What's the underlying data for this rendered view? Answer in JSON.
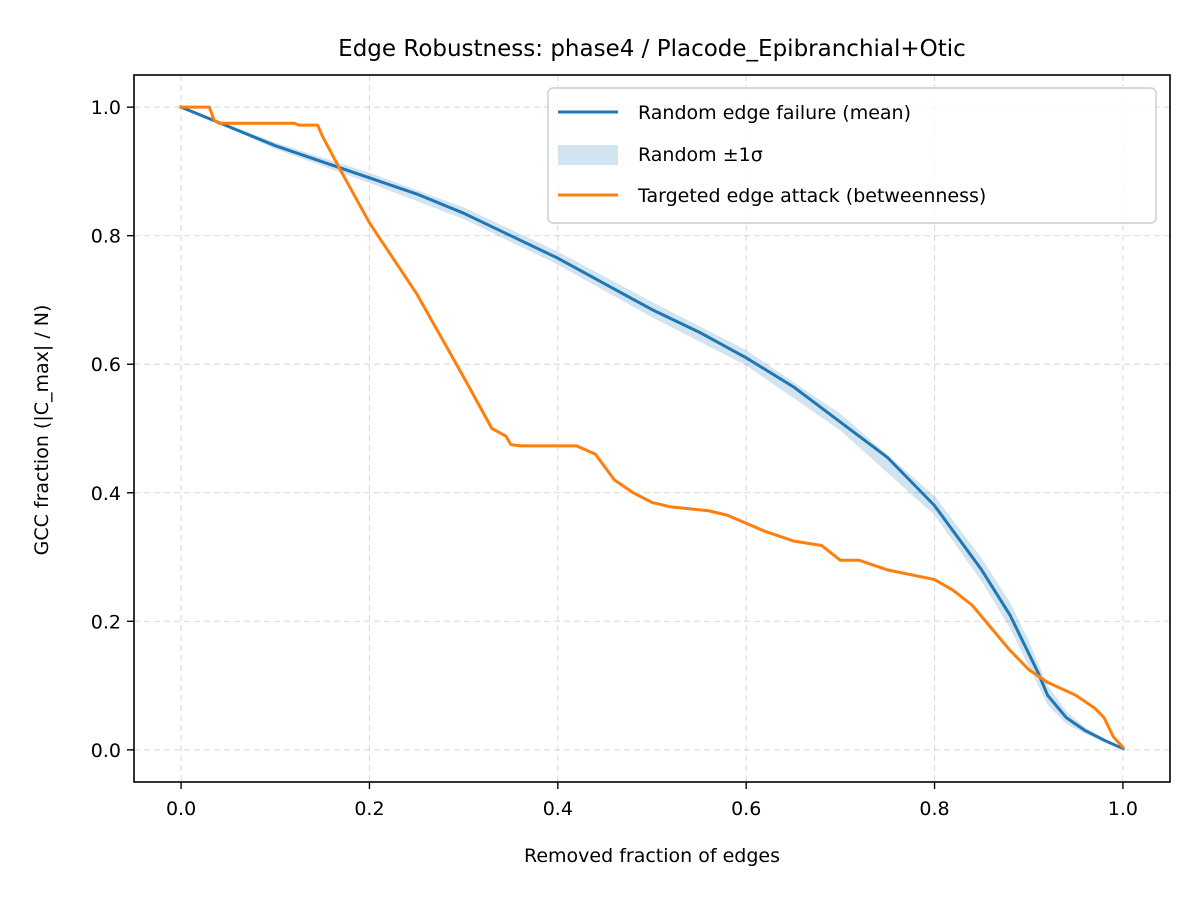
{
  "chart_data": {
    "type": "line",
    "title": "Edge Robustness: phase4 / Placode_Epibranchial+Otic",
    "xlabel": "Removed fraction of edges",
    "ylabel": "GCC fraction (|C_max| / N)",
    "xlim": [
      -0.05,
      1.05
    ],
    "ylim": [
      -0.05,
      1.05
    ],
    "xticks": [
      0.0,
      0.2,
      0.4,
      0.6,
      0.8,
      1.0
    ],
    "xtick_labels": [
      "0.0",
      "0.2",
      "0.4",
      "0.6",
      "0.8",
      "1.0"
    ],
    "yticks": [
      0.0,
      0.2,
      0.4,
      0.6,
      0.8,
      1.0
    ],
    "ytick_labels": [
      "0.0",
      "0.2",
      "0.4",
      "0.6",
      "0.8",
      "1.0"
    ],
    "grid": true,
    "legend_position": "upper right",
    "series": [
      {
        "name": "Random edge failure (mean)",
        "color": "#1f77b4",
        "x": [
          0.0,
          0.05,
          0.1,
          0.15,
          0.2,
          0.25,
          0.3,
          0.35,
          0.4,
          0.45,
          0.5,
          0.55,
          0.6,
          0.65,
          0.7,
          0.75,
          0.8,
          0.85,
          0.88,
          0.9,
          0.91,
          0.92,
          0.94,
          0.96,
          0.98,
          1.0
        ],
        "y": [
          1.0,
          0.97,
          0.94,
          0.915,
          0.89,
          0.865,
          0.835,
          0.8,
          0.765,
          0.725,
          0.685,
          0.65,
          0.61,
          0.565,
          0.51,
          0.455,
          0.38,
          0.28,
          0.21,
          0.15,
          0.12,
          0.085,
          0.05,
          0.03,
          0.015,
          0.002
        ]
      },
      {
        "name": "Random ±1σ",
        "color": "#1f77b4",
        "fill_alpha": 0.2,
        "x": [
          0.0,
          0.1,
          0.2,
          0.3,
          0.4,
          0.5,
          0.6,
          0.7,
          0.8,
          0.85,
          0.88,
          0.9,
          0.92,
          0.94,
          0.96,
          0.98,
          1.0
        ],
        "lower": [
          1.0,
          0.935,
          0.882,
          0.826,
          0.755,
          0.673,
          0.598,
          0.497,
          0.365,
          0.262,
          0.19,
          0.13,
          0.07,
          0.04,
          0.025,
          0.012,
          0.002
        ],
        "upper": [
          1.0,
          0.945,
          0.898,
          0.844,
          0.775,
          0.697,
          0.622,
          0.523,
          0.395,
          0.298,
          0.23,
          0.17,
          0.1,
          0.06,
          0.035,
          0.018,
          0.002
        ]
      },
      {
        "name": "Targeted edge attack (betweenness)",
        "color": "#ff7f0e",
        "x": [
          0.0,
          0.03,
          0.035,
          0.04,
          0.12,
          0.125,
          0.145,
          0.15,
          0.17,
          0.2,
          0.25,
          0.3,
          0.33,
          0.345,
          0.35,
          0.36,
          0.42,
          0.44,
          0.46,
          0.48,
          0.5,
          0.52,
          0.56,
          0.58,
          0.62,
          0.65,
          0.68,
          0.7,
          0.72,
          0.75,
          0.8,
          0.82,
          0.84,
          0.86,
          0.88,
          0.9,
          0.92,
          0.95,
          0.97,
          0.98,
          0.99,
          1.0
        ],
        "y": [
          1.0,
          1.0,
          0.98,
          0.975,
          0.975,
          0.972,
          0.972,
          0.955,
          0.9,
          0.82,
          0.71,
          0.58,
          0.5,
          0.488,
          0.475,
          0.473,
          0.473,
          0.46,
          0.42,
          0.4,
          0.385,
          0.378,
          0.372,
          0.365,
          0.34,
          0.325,
          0.318,
          0.295,
          0.295,
          0.28,
          0.265,
          0.248,
          0.225,
          0.19,
          0.155,
          0.125,
          0.105,
          0.085,
          0.065,
          0.05,
          0.02,
          0.004
        ]
      }
    ]
  }
}
